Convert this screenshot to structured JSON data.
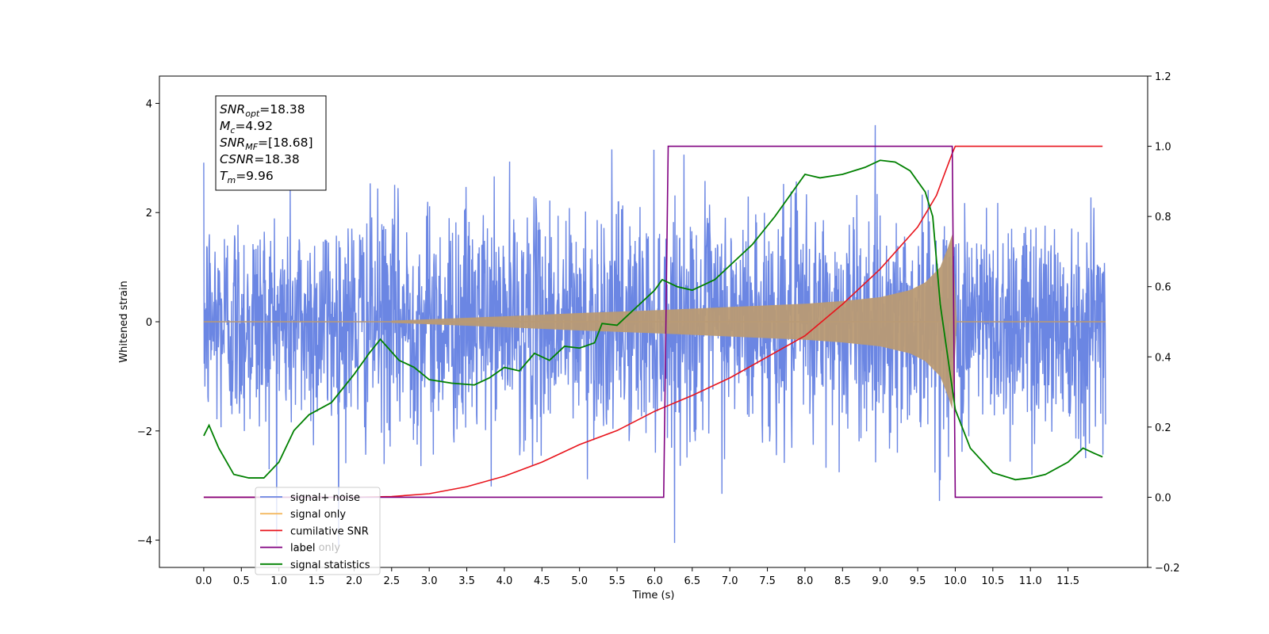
{
  "chart_data": {
    "type": "line",
    "xlabel": "Time (s)",
    "ylabel": "Whitened strain",
    "xlim": [
      -0.59,
      12.56
    ],
    "ylim_left": [
      -4.5,
      4.5
    ],
    "ylim_right": [
      -0.2,
      1.2
    ],
    "x_ticks": [
      0.0,
      0.5,
      1.0,
      1.5,
      2.0,
      2.5,
      3.0,
      3.5,
      4.0,
      4.5,
      5.0,
      5.5,
      6.0,
      6.5,
      7.0,
      7.5,
      8.0,
      8.5,
      9.0,
      9.5,
      10.0,
      10.5,
      11.0,
      11.5
    ],
    "x_tick_labels": [
      "0.0",
      "0.5",
      "1.0",
      "1.5",
      "2.0",
      "2.5",
      "3.0",
      "3.5",
      "4.0",
      "4.5",
      "5.0",
      "5.5",
      "6.0",
      "6.5",
      "7.0",
      "7.5",
      "8.0",
      "8.5",
      "9.0",
      "9.5",
      "10.0",
      "10.5",
      "11.0",
      "11.5"
    ],
    "y_left_ticks": [
      -4,
      -2,
      0,
      2,
      4
    ],
    "y_left_tick_labels": [
      "−4",
      "−2",
      "0",
      "2",
      "4"
    ],
    "y_right_ticks": [
      -0.2,
      0.0,
      0.2,
      0.4,
      0.6,
      0.8,
      1.0,
      1.2
    ],
    "y_right_tick_labels": [
      "−0.2",
      "0.0",
      "0.2",
      "0.4",
      "0.6",
      "0.8",
      "1.0",
      "1.2"
    ],
    "series": [
      {
        "name": "signal+ noise",
        "axis": "left",
        "color": "#6b86e3",
        "x_range": [
          0.0,
          12.0
        ],
        "noise_std": 1.05,
        "min": -4.1,
        "max": 4.1
      },
      {
        "name": "signal only",
        "axis": "left",
        "color": "#f4b860",
        "overlap_color": "#b99a74",
        "x_range": [
          0.0,
          12.0
        ],
        "chirp_start": 2.5,
        "merger_time": 9.96,
        "envelope": [
          [
            2.5,
            0.02
          ],
          [
            4.0,
            0.1
          ],
          [
            5.0,
            0.16
          ],
          [
            6.0,
            0.21
          ],
          [
            7.0,
            0.27
          ],
          [
            8.0,
            0.33
          ],
          [
            8.5,
            0.38
          ],
          [
            9.0,
            0.45
          ],
          [
            9.4,
            0.58
          ],
          [
            9.6,
            0.72
          ],
          [
            9.8,
            1.0
          ],
          [
            9.9,
            1.35
          ],
          [
            9.96,
            1.6
          ],
          [
            10.02,
            0.0
          ]
        ]
      },
      {
        "name": "cumilative SNR",
        "axis": "right",
        "color": "#e8141c",
        "points": [
          [
            0.0,
            0.0
          ],
          [
            2.0,
            0.0
          ],
          [
            2.5,
            0.002
          ],
          [
            3.0,
            0.01
          ],
          [
            3.5,
            0.03
          ],
          [
            4.0,
            0.06
          ],
          [
            4.5,
            0.1
          ],
          [
            5.0,
            0.15
          ],
          [
            5.5,
            0.19
          ],
          [
            6.0,
            0.245
          ],
          [
            6.5,
            0.29
          ],
          [
            7.0,
            0.34
          ],
          [
            7.5,
            0.4
          ],
          [
            8.0,
            0.46
          ],
          [
            8.5,
            0.55
          ],
          [
            9.0,
            0.65
          ],
          [
            9.5,
            0.77
          ],
          [
            9.75,
            0.86
          ],
          [
            9.96,
            0.98
          ],
          [
            10.0,
            1.0
          ],
          [
            11.96,
            1.0
          ]
        ]
      },
      {
        "name": "label",
        "axis": "right",
        "color": "#800080",
        "points": [
          [
            0.0,
            0.0
          ],
          [
            6.12,
            0.0
          ],
          [
            6.18,
            1.0
          ],
          [
            9.96,
            1.0
          ],
          [
            10.0,
            0.0
          ],
          [
            11.96,
            0.0
          ]
        ]
      },
      {
        "name": "signal statistics",
        "axis": "right",
        "color": "#008000",
        "points": [
          [
            0.0,
            0.175
          ],
          [
            0.07,
            0.205
          ],
          [
            0.2,
            0.14
          ],
          [
            0.4,
            0.065
          ],
          [
            0.6,
            0.055
          ],
          [
            0.8,
            0.055
          ],
          [
            1.0,
            0.1
          ],
          [
            1.2,
            0.19
          ],
          [
            1.4,
            0.235
          ],
          [
            1.7,
            0.27
          ],
          [
            2.0,
            0.35
          ],
          [
            2.2,
            0.41
          ],
          [
            2.35,
            0.45
          ],
          [
            2.6,
            0.39
          ],
          [
            2.8,
            0.37
          ],
          [
            3.0,
            0.335
          ],
          [
            3.3,
            0.325
          ],
          [
            3.6,
            0.32
          ],
          [
            3.8,
            0.34
          ],
          [
            4.0,
            0.37
          ],
          [
            4.2,
            0.36
          ],
          [
            4.4,
            0.41
          ],
          [
            4.6,
            0.39
          ],
          [
            4.8,
            0.43
          ],
          [
            5.0,
            0.425
          ],
          [
            5.2,
            0.44
          ],
          [
            5.3,
            0.495
          ],
          [
            5.5,
            0.49
          ],
          [
            5.8,
            0.55
          ],
          [
            6.0,
            0.59
          ],
          [
            6.1,
            0.62
          ],
          [
            6.3,
            0.6
          ],
          [
            6.5,
            0.59
          ],
          [
            6.8,
            0.62
          ],
          [
            7.0,
            0.66
          ],
          [
            7.3,
            0.72
          ],
          [
            7.6,
            0.8
          ],
          [
            7.8,
            0.86
          ],
          [
            8.0,
            0.92
          ],
          [
            8.2,
            0.91
          ],
          [
            8.5,
            0.92
          ],
          [
            8.8,
            0.94
          ],
          [
            9.0,
            0.96
          ],
          [
            9.2,
            0.955
          ],
          [
            9.4,
            0.93
          ],
          [
            9.6,
            0.87
          ],
          [
            9.7,
            0.8
          ],
          [
            9.8,
            0.55
          ],
          [
            9.9,
            0.4
          ],
          [
            10.0,
            0.25
          ],
          [
            10.2,
            0.14
          ],
          [
            10.5,
            0.07
          ],
          [
            10.8,
            0.05
          ],
          [
            11.0,
            0.055
          ],
          [
            11.2,
            0.065
          ],
          [
            11.5,
            0.1
          ],
          [
            11.7,
            0.14
          ],
          [
            11.85,
            0.125
          ],
          [
            11.96,
            0.115
          ]
        ]
      }
    ],
    "textbox_lines": [
      {
        "base": "SNR",
        "sub": "opt",
        "value": "=18.38"
      },
      {
        "base": "M",
        "sub": "c",
        "value": "=4.92"
      },
      {
        "base": "SNR",
        "sub": "MF",
        "value": "=[18.68]"
      },
      {
        "base": "CSNR",
        "sub": "",
        "value": "=18.38"
      },
      {
        "base": "T",
        "sub": "m",
        "value": "=9.96"
      }
    ],
    "legend": {
      "placement": "lower-left",
      "entries": [
        "signal+ noise",
        "signal only",
        "cumilative SNR",
        "label",
        "signal statistics"
      ],
      "ghost_text": "label only"
    },
    "grid": false
  }
}
